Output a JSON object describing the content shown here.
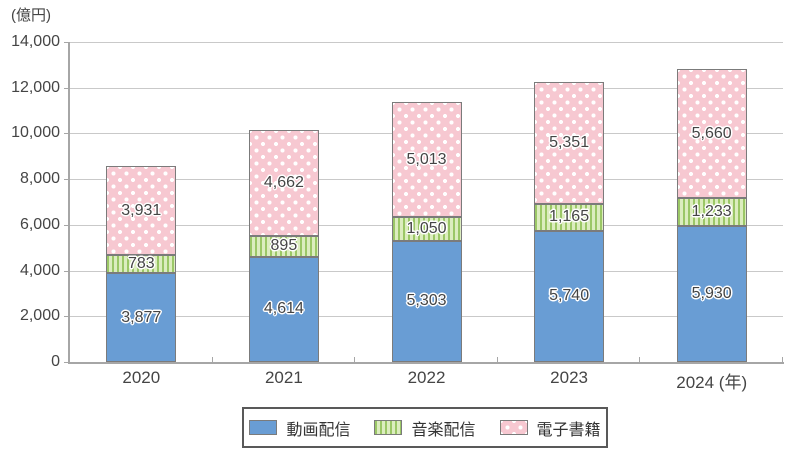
{
  "chart_data": {
    "type": "bar",
    "stacked": true,
    "title": "",
    "ylabel": "(億円)",
    "xlabel": "",
    "categories": [
      "2020",
      "2021",
      "2022",
      "2023",
      "2024"
    ],
    "xtick_labels": [
      "2020",
      "2021",
      "2022",
      "2023",
      "2024 (年)"
    ],
    "series": [
      {
        "name": "動画配信",
        "pattern": "solid",
        "color": "#699dd4",
        "values": [
          3877,
          4614,
          5303,
          5740,
          5930
        ]
      },
      {
        "name": "音楽配信",
        "pattern": "vstripes",
        "color": "#dcedbf",
        "stripe_color": "#9bc766",
        "values": [
          783,
          895,
          1050,
          1165,
          1233
        ]
      },
      {
        "name": "電子書籍",
        "pattern": "dots",
        "color": "#f7c8d1",
        "dot_color": "#ffffff",
        "values": [
          3931,
          4662,
          5013,
          5351,
          5660
        ]
      }
    ],
    "ylim": [
      0,
      14000
    ],
    "ytick_step": 2000,
    "grid": true,
    "legend_position": "bottom",
    "style": {
      "axis_color": "#a6a6a6",
      "grid_color": "#c9c9c9",
      "segment_border_color": "#7b7b7b",
      "label_color": "#454545",
      "legend_border_color": "#595959"
    }
  }
}
